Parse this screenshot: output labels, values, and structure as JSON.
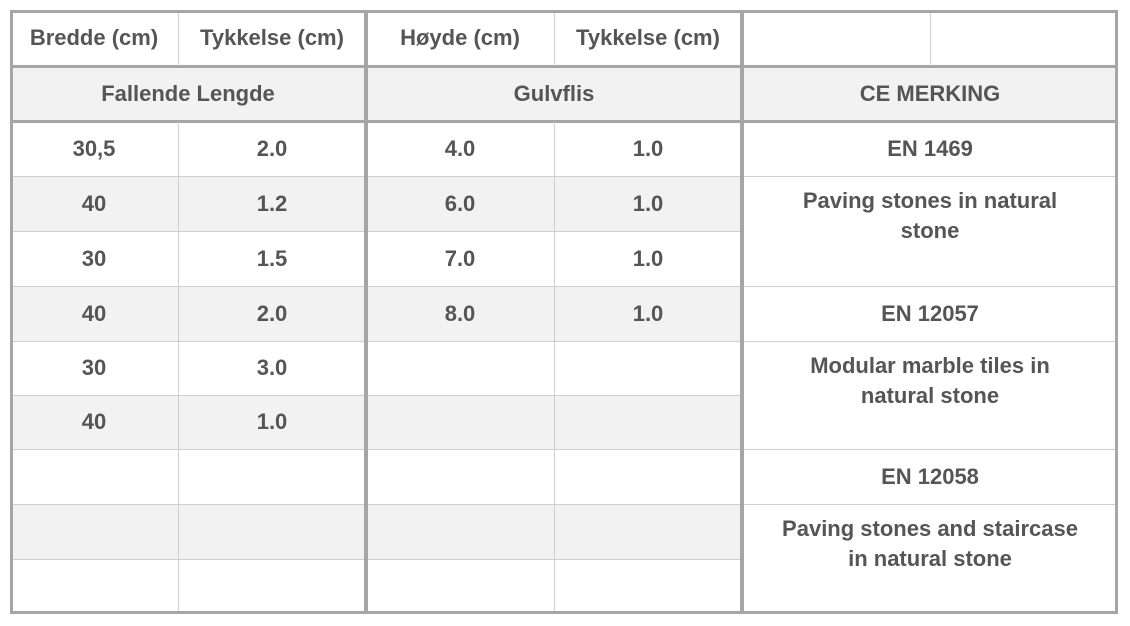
{
  "header": {
    "col1": "Bredde (cm)",
    "col2": "Tykkelse (cm)",
    "col3": "Høyde (cm)",
    "col4": "Tykkelse (cm)",
    "col5": "",
    "col6": ""
  },
  "groups": {
    "fallende": "Fallende Lengde",
    "gulvflis": "Gulvflis",
    "ce": "CE MERKING"
  },
  "rows": [
    {
      "bredde": "30,5",
      "tykkelse1": "2.0",
      "hoyde": "4.0",
      "tykkelse2": "1.0"
    },
    {
      "bredde": "40",
      "tykkelse1": "1.2",
      "hoyde": "6.0",
      "tykkelse2": "1.0"
    },
    {
      "bredde": "30",
      "tykkelse1": "1.5",
      "hoyde": "7.0",
      "tykkelse2": "1.0"
    },
    {
      "bredde": "40",
      "tykkelse1": "2.0",
      "hoyde": "8.0",
      "tykkelse2": "1.0"
    },
    {
      "bredde": "30",
      "tykkelse1": "3.0",
      "hoyde": "",
      "tykkelse2": ""
    },
    {
      "bredde": "40",
      "tykkelse1": "1.0",
      "hoyde": "",
      "tykkelse2": ""
    },
    {
      "bredde": "",
      "tykkelse1": "",
      "hoyde": "",
      "tykkelse2": ""
    },
    {
      "bredde": "",
      "tykkelse1": "",
      "hoyde": "",
      "tykkelse2": ""
    },
    {
      "bredde": "",
      "tykkelse1": "",
      "hoyde": "",
      "tykkelse2": ""
    }
  ],
  "ce_marking": [
    {
      "code": "EN 1469",
      "description": "Paving stones in natural stone"
    },
    {
      "code": "EN 12057",
      "description": "Modular marble tiles in natural stone"
    },
    {
      "code": "EN 12058",
      "description": "Paving stones and staircase in natural stone"
    }
  ]
}
